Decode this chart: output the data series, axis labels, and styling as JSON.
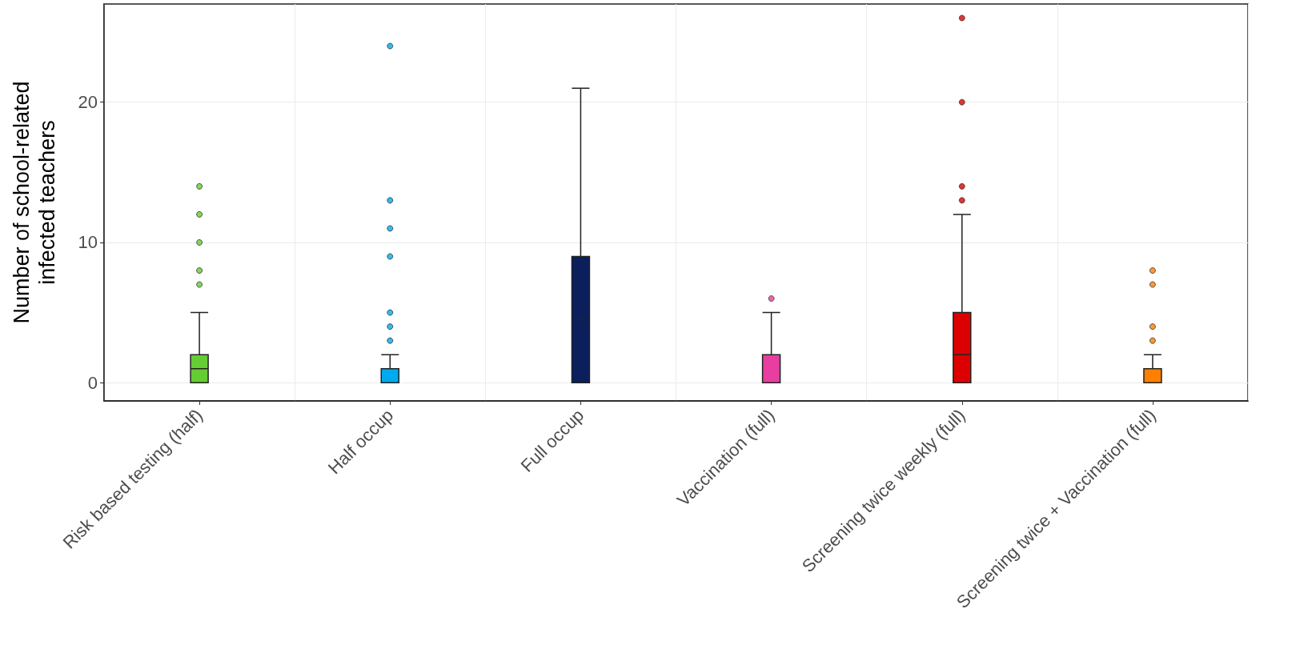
{
  "chart_data": {
    "type": "box",
    "ylabel": "Number of school-related\ninfected teachers",
    "categories": [
      "Risk based testing (half)",
      "Half occup",
      "Full occup",
      "Vaccination (full)",
      "Screening twice weekly (full)",
      "Screening twice + Vaccination (full)"
    ],
    "colors": [
      "#66cc33",
      "#00aaee",
      "#0a1f5c",
      "#e83ea0",
      "#dd0000",
      "#ff8000"
    ],
    "boxes": [
      {
        "low": 0,
        "q1": 0,
        "median": 1,
        "q3": 2,
        "high": 5,
        "outliers": [
          7,
          8,
          10,
          12,
          14
        ]
      },
      {
        "low": 0,
        "q1": 0,
        "median": 0,
        "q3": 1,
        "high": 2,
        "outliers": [
          3,
          4,
          5,
          9,
          11,
          13,
          24
        ]
      },
      {
        "low": 0,
        "q1": 0,
        "median": 4.5,
        "q3": 9,
        "high": 21
      },
      {
        "low": 0,
        "q1": 0,
        "median": 0,
        "q3": 2,
        "high": 5,
        "outliers": [
          6
        ]
      },
      {
        "low": 0,
        "q1": 0,
        "median": 2,
        "q3": 5,
        "high": 12,
        "outliers": [
          13,
          14,
          20,
          26
        ]
      },
      {
        "low": 0,
        "q1": 0,
        "median": 0,
        "q3": 1,
        "high": 2,
        "outliers": [
          3,
          4,
          7,
          8
        ]
      }
    ],
    "ylim": [
      -1.3,
      27
    ],
    "yticks": [
      0,
      10,
      20
    ],
    "grid": true
  }
}
